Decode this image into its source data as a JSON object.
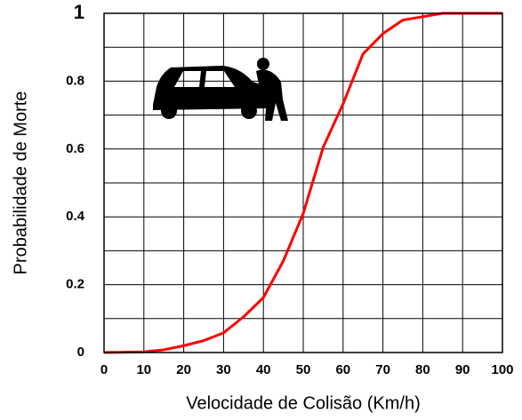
{
  "chart_data": {
    "type": "line",
    "x_label": "Velocidade de Colisão (Km/h)",
    "y_label": "Probabilidade de Morte",
    "x": [
      0,
      10,
      15,
      20,
      25,
      30,
      35,
      40,
      45,
      50,
      55,
      60,
      65,
      70,
      75,
      80,
      85,
      90,
      100
    ],
    "series": [
      {
        "color": "#ff0000",
        "values": [
          0,
          0.002,
          0.008,
          0.02,
          0.035,
          0.058,
          0.105,
          0.162,
          0.27,
          0.41,
          0.605,
          0.733,
          0.88,
          0.94,
          0.98,
          0.99,
          1,
          1,
          1
        ]
      }
    ],
    "xlim": [
      0,
      100
    ],
    "xticks": [
      0,
      10,
      20,
      30,
      40,
      50,
      60,
      70,
      80,
      90,
      100
    ],
    "ylim": [
      0,
      1
    ],
    "yticks": [
      0,
      0.2,
      0.4,
      0.6,
      0.8,
      1
    ],
    "y_minor_gridlines": [
      0.1,
      0.3,
      0.5,
      0.7,
      0.9
    ],
    "grid": true
  }
}
